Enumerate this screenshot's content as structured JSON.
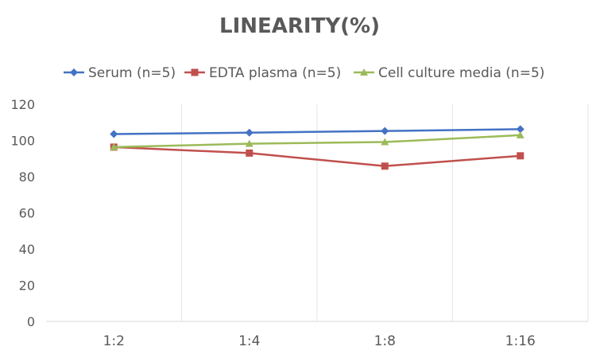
{
  "chart_data": {
    "type": "line",
    "title": "LINEARITY(%)",
    "categories": [
      "1:2",
      "1:4",
      "1:8",
      "1:16"
    ],
    "ylim": [
      0,
      120
    ],
    "yticks": [
      0,
      20,
      40,
      60,
      80,
      100,
      120
    ],
    "legend_position": "top",
    "grid": "vertical",
    "series": [
      {
        "name": "Serum (n=5)",
        "color": "#4472C4",
        "marker": "diamond",
        "values": [
          103.5,
          104.3,
          105.2,
          106.2
        ]
      },
      {
        "name": "EDTA plasma (n=5)",
        "color": "#C0504D",
        "marker": "square",
        "values": [
          96.3,
          93,
          85.8,
          91.5
        ]
      },
      {
        "name": "Cell culture media (n=5)",
        "color": "#9BBB59",
        "marker": "triangle",
        "values": [
          96.3,
          98.2,
          99.1,
          102.9
        ]
      }
    ]
  }
}
